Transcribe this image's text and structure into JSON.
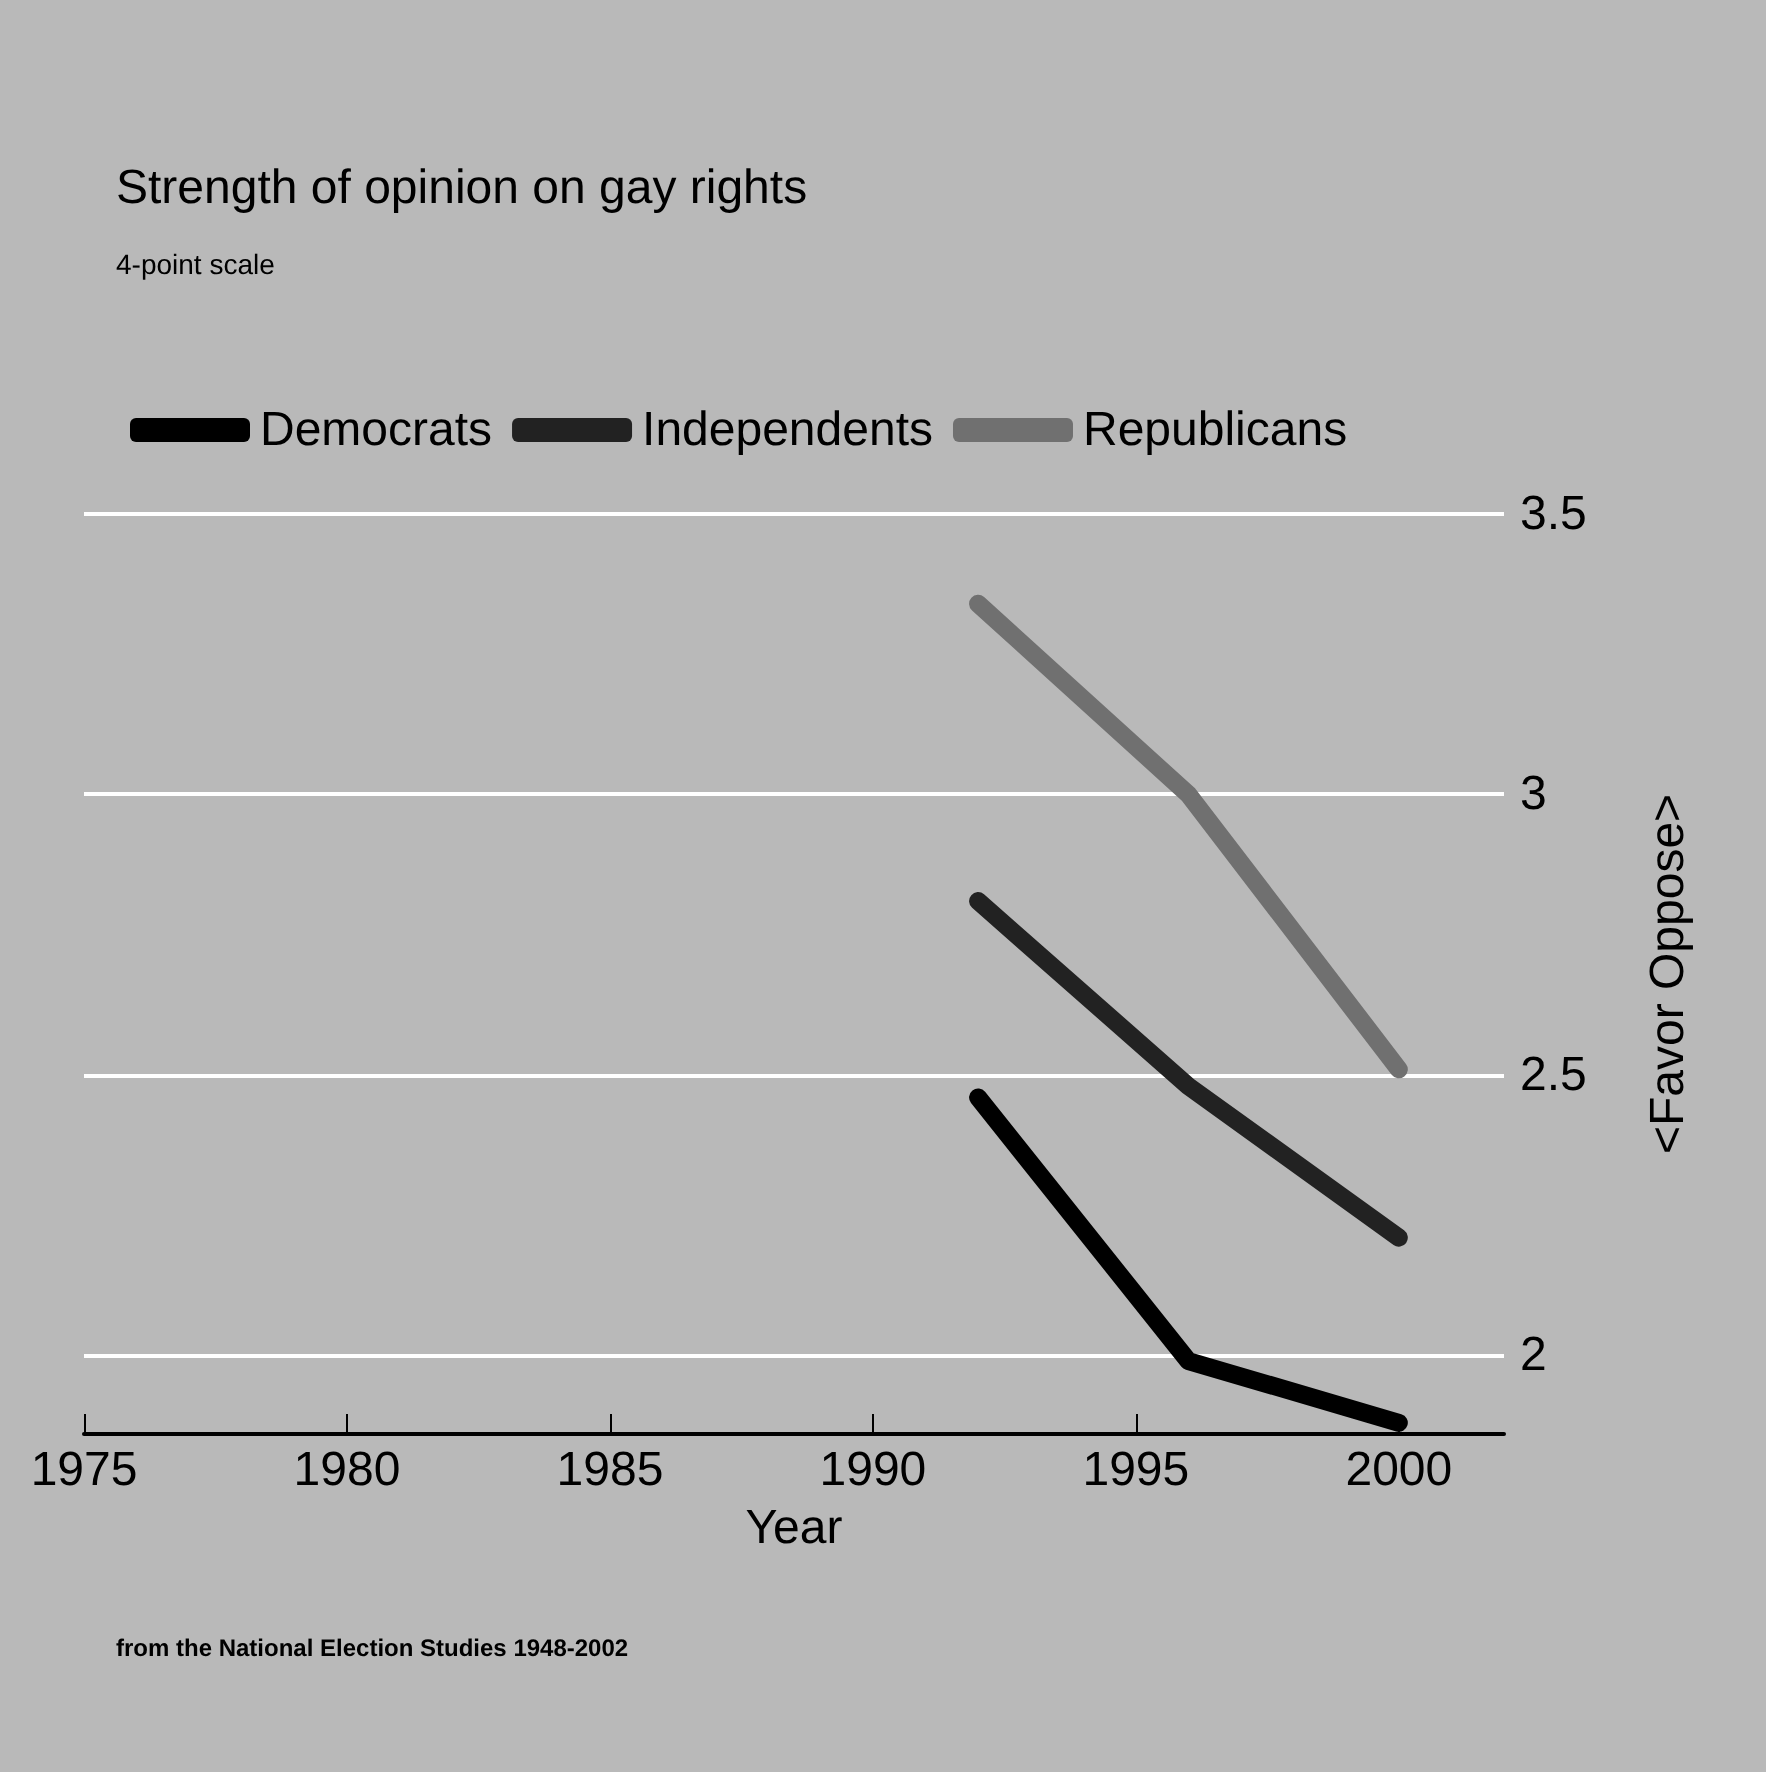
{
  "chart_data": {
    "type": "line",
    "title": "Strength of opinion on gay rights",
    "subtitle": "4-point scale",
    "xlabel": "Year",
    "ylabel": "<Favor Oppose>",
    "annotations": [
      "from the National Election Studies 1948-2002"
    ],
    "x": [
      1992,
      1996,
      2000
    ],
    "series": [
      {
        "name": "Democrats",
        "color": "#000000",
        "values": [
          2.46,
          1.99,
          1.88
        ]
      },
      {
        "name": "Independents",
        "color": "#222222",
        "values": [
          2.81,
          2.48,
          2.21
        ]
      },
      {
        "name": "Republicans",
        "color": "#707070",
        "values": [
          3.34,
          3.0,
          2.51
        ]
      }
    ],
    "xlim": [
      1975,
      2002
    ],
    "xticks": [
      1975,
      1980,
      1985,
      1990,
      1995,
      2000
    ],
    "ylim": [
      1.86,
      3.5
    ],
    "yticks": [
      2,
      2.5,
      3,
      3.5
    ],
    "grid": "y",
    "legend": "top left",
    "marker": "none",
    "line_style": "solid"
  }
}
